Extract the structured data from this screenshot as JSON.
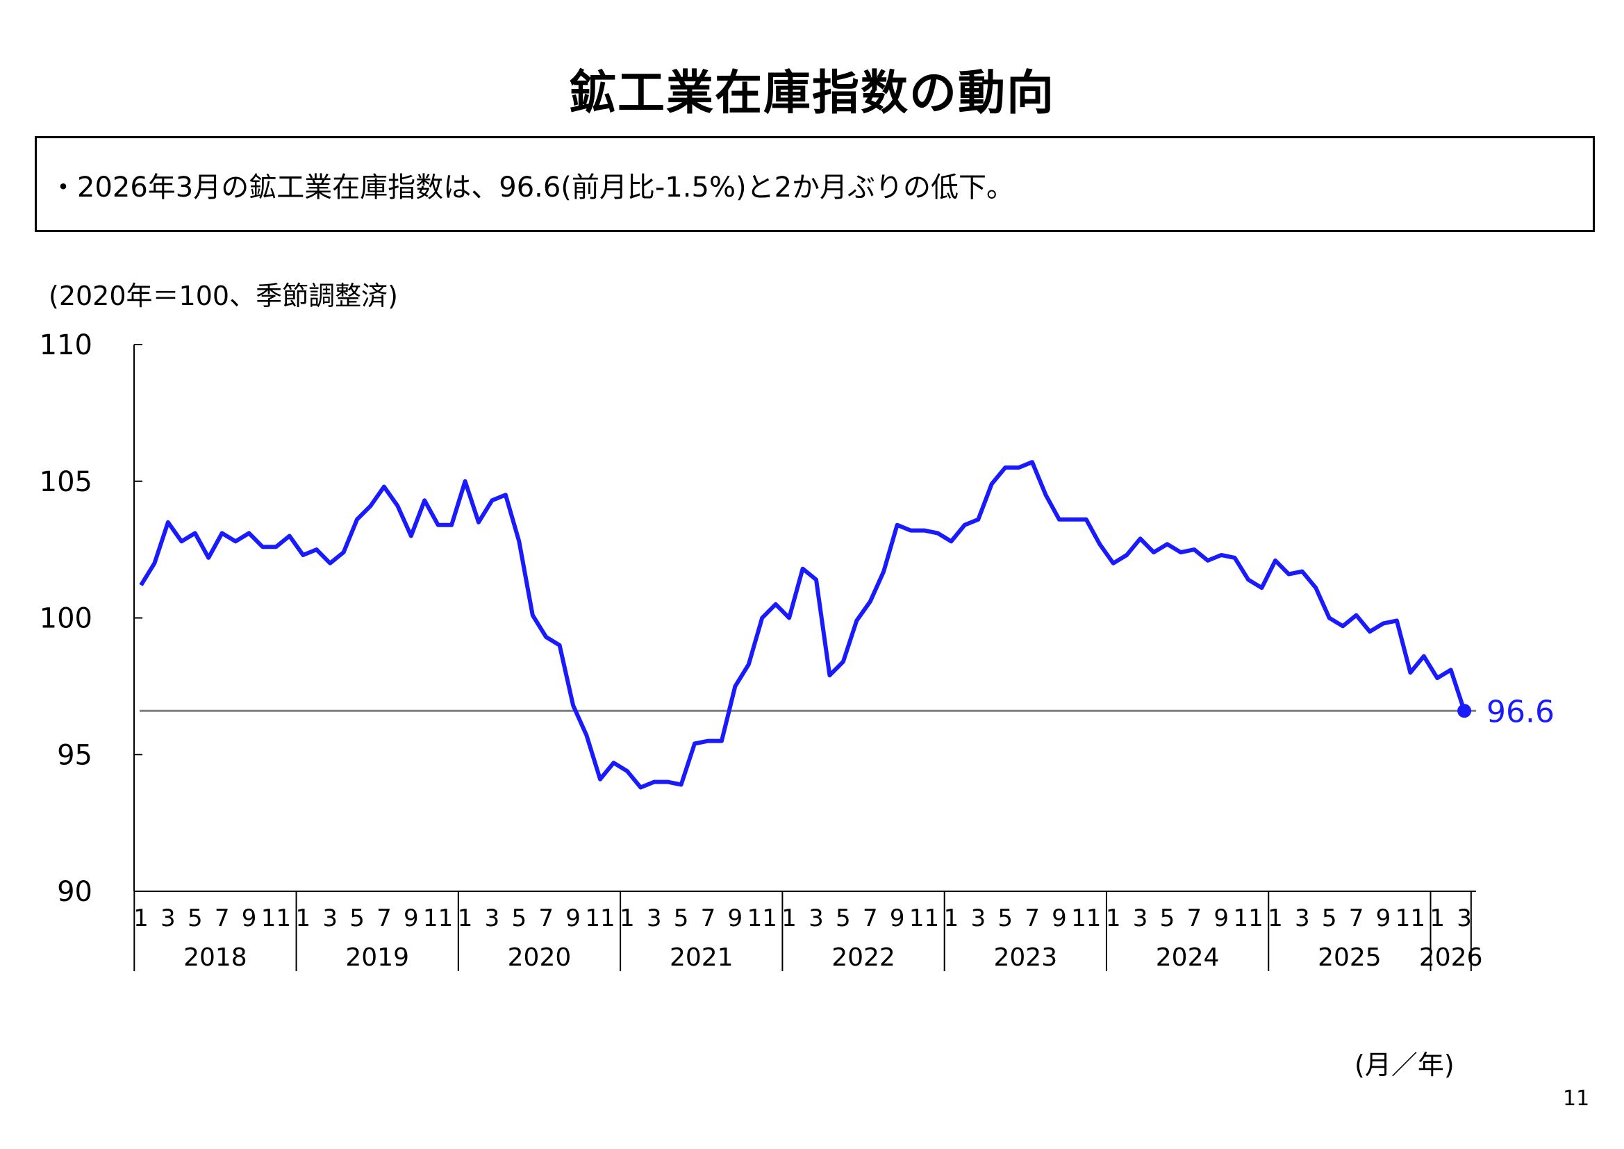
{
  "title": "鉱工業在庫指数の動向",
  "summary": "・2026年3月の鉱工業在庫指数は、96.6(前月比-1.5%)と2か月ぶりの低下。",
  "unit_note": "(2020年＝100、季節調整済)",
  "axis_unit": "(月／年)",
  "page_number": "11",
  "colors": {
    "series": "#1a1aff",
    "reference_line": "#808080",
    "axis": "#000000"
  },
  "chart_data": {
    "type": "line",
    "title": "",
    "xlabel": "(月／年)",
    "ylabel": "(2020年＝100、季節調整済)",
    "ylim": [
      90,
      110
    ],
    "yticks": [
      90,
      95,
      100,
      105,
      110
    ],
    "years": [
      "2018",
      "2019",
      "2020",
      "2021",
      "2022",
      "2023",
      "2024",
      "2025",
      "2026"
    ],
    "month_labels": [
      "1",
      "3",
      "5",
      "7",
      "9",
      "11"
    ],
    "month_labels_last_year": [
      "1",
      "3"
    ],
    "reference_line": 96.6,
    "last_value_label": "96.6",
    "grid": false,
    "series": [
      {
        "values": [
          101.2,
          102.0,
          103.5,
          102.8,
          103.1,
          102.2,
          103.1,
          102.8,
          103.1,
          102.6,
          102.6,
          103.0,
          102.3,
          102.5,
          102.0,
          102.4,
          103.6,
          104.1,
          104.8,
          104.1,
          103.0,
          104.3,
          103.4,
          103.4,
          105.0,
          103.5,
          104.3,
          104.5,
          102.8,
          100.1,
          99.3,
          99.0,
          96.8,
          95.7,
          94.1,
          94.7,
          94.4,
          93.8,
          94.0,
          94.0,
          93.9,
          95.4,
          95.5,
          95.5,
          97.5,
          98.3,
          100.0,
          100.5,
          100.0,
          101.8,
          101.4,
          97.9,
          98.4,
          99.9,
          100.6,
          101.7,
          103.4,
          103.2,
          103.2,
          103.1,
          102.8,
          103.4,
          103.6,
          104.9,
          105.5,
          105.5,
          105.7,
          104.5,
          103.6,
          103.6,
          103.6,
          102.7,
          102.0,
          102.3,
          102.9,
          102.4,
          102.7,
          102.4,
          102.5,
          102.1,
          102.3,
          102.2,
          101.4,
          101.1,
          102.1,
          101.6,
          101.7,
          101.1,
          100.0,
          99.7,
          100.1,
          99.5,
          99.8,
          99.9,
          98.0,
          98.6,
          97.8,
          98.1,
          96.6
        ]
      }
    ]
  }
}
